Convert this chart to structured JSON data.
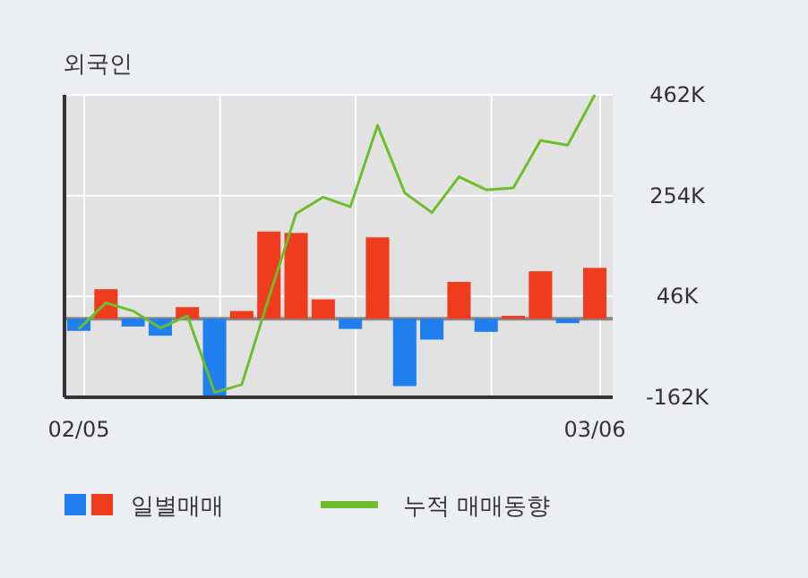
{
  "chart_data": {
    "type": "bar",
    "title": "외국인",
    "categories": [
      "02/05",
      null,
      null,
      null,
      null,
      null,
      null,
      null,
      null,
      null,
      null,
      null,
      null,
      null,
      null,
      null,
      null,
      null,
      null,
      "03/06"
    ],
    "series": [
      {
        "name": "일별매매",
        "colors": [
          "#1f7fef",
          "#f03c1e",
          "#1f7fef",
          "#1f7fef",
          "#f03c1e",
          "#1f7fef",
          "#f03c1e",
          "#f03c1e",
          "#f03c1e",
          "#f03c1e",
          "#1f7fef",
          "#f03c1e",
          "#1f7fef",
          "#1f7fef",
          "#f03c1e",
          "#1f7fef",
          "#f03c1e",
          "#f03c1e",
          "#1f7fef",
          "#f03c1e"
        ],
        "values": [
          -25,
          61,
          -16,
          -35,
          24,
          -161,
          16,
          180,
          177,
          40,
          -21,
          168,
          -139,
          -43,
          76,
          -27,
          6,
          98,
          -9,
          105
        ]
      },
      {
        "name": "누적 매매동향",
        "type": "line",
        "color": "#6cbf2a",
        "values": [
          -21,
          33,
          16,
          -19,
          6,
          -152,
          -136,
          44,
          217,
          251,
          231,
          399,
          260,
          219,
          293,
          266,
          270,
          368,
          358,
          462
        ]
      }
    ],
    "ylim": [
      -162,
      462
    ],
    "yticks": [
      {
        "value": -162,
        "label": "-162K"
      },
      {
        "value": 46,
        "label": "46K"
      },
      {
        "value": 254,
        "label": "254K"
      },
      {
        "value": 462,
        "label": "462K"
      }
    ],
    "grid": true,
    "legend": "bottom"
  }
}
